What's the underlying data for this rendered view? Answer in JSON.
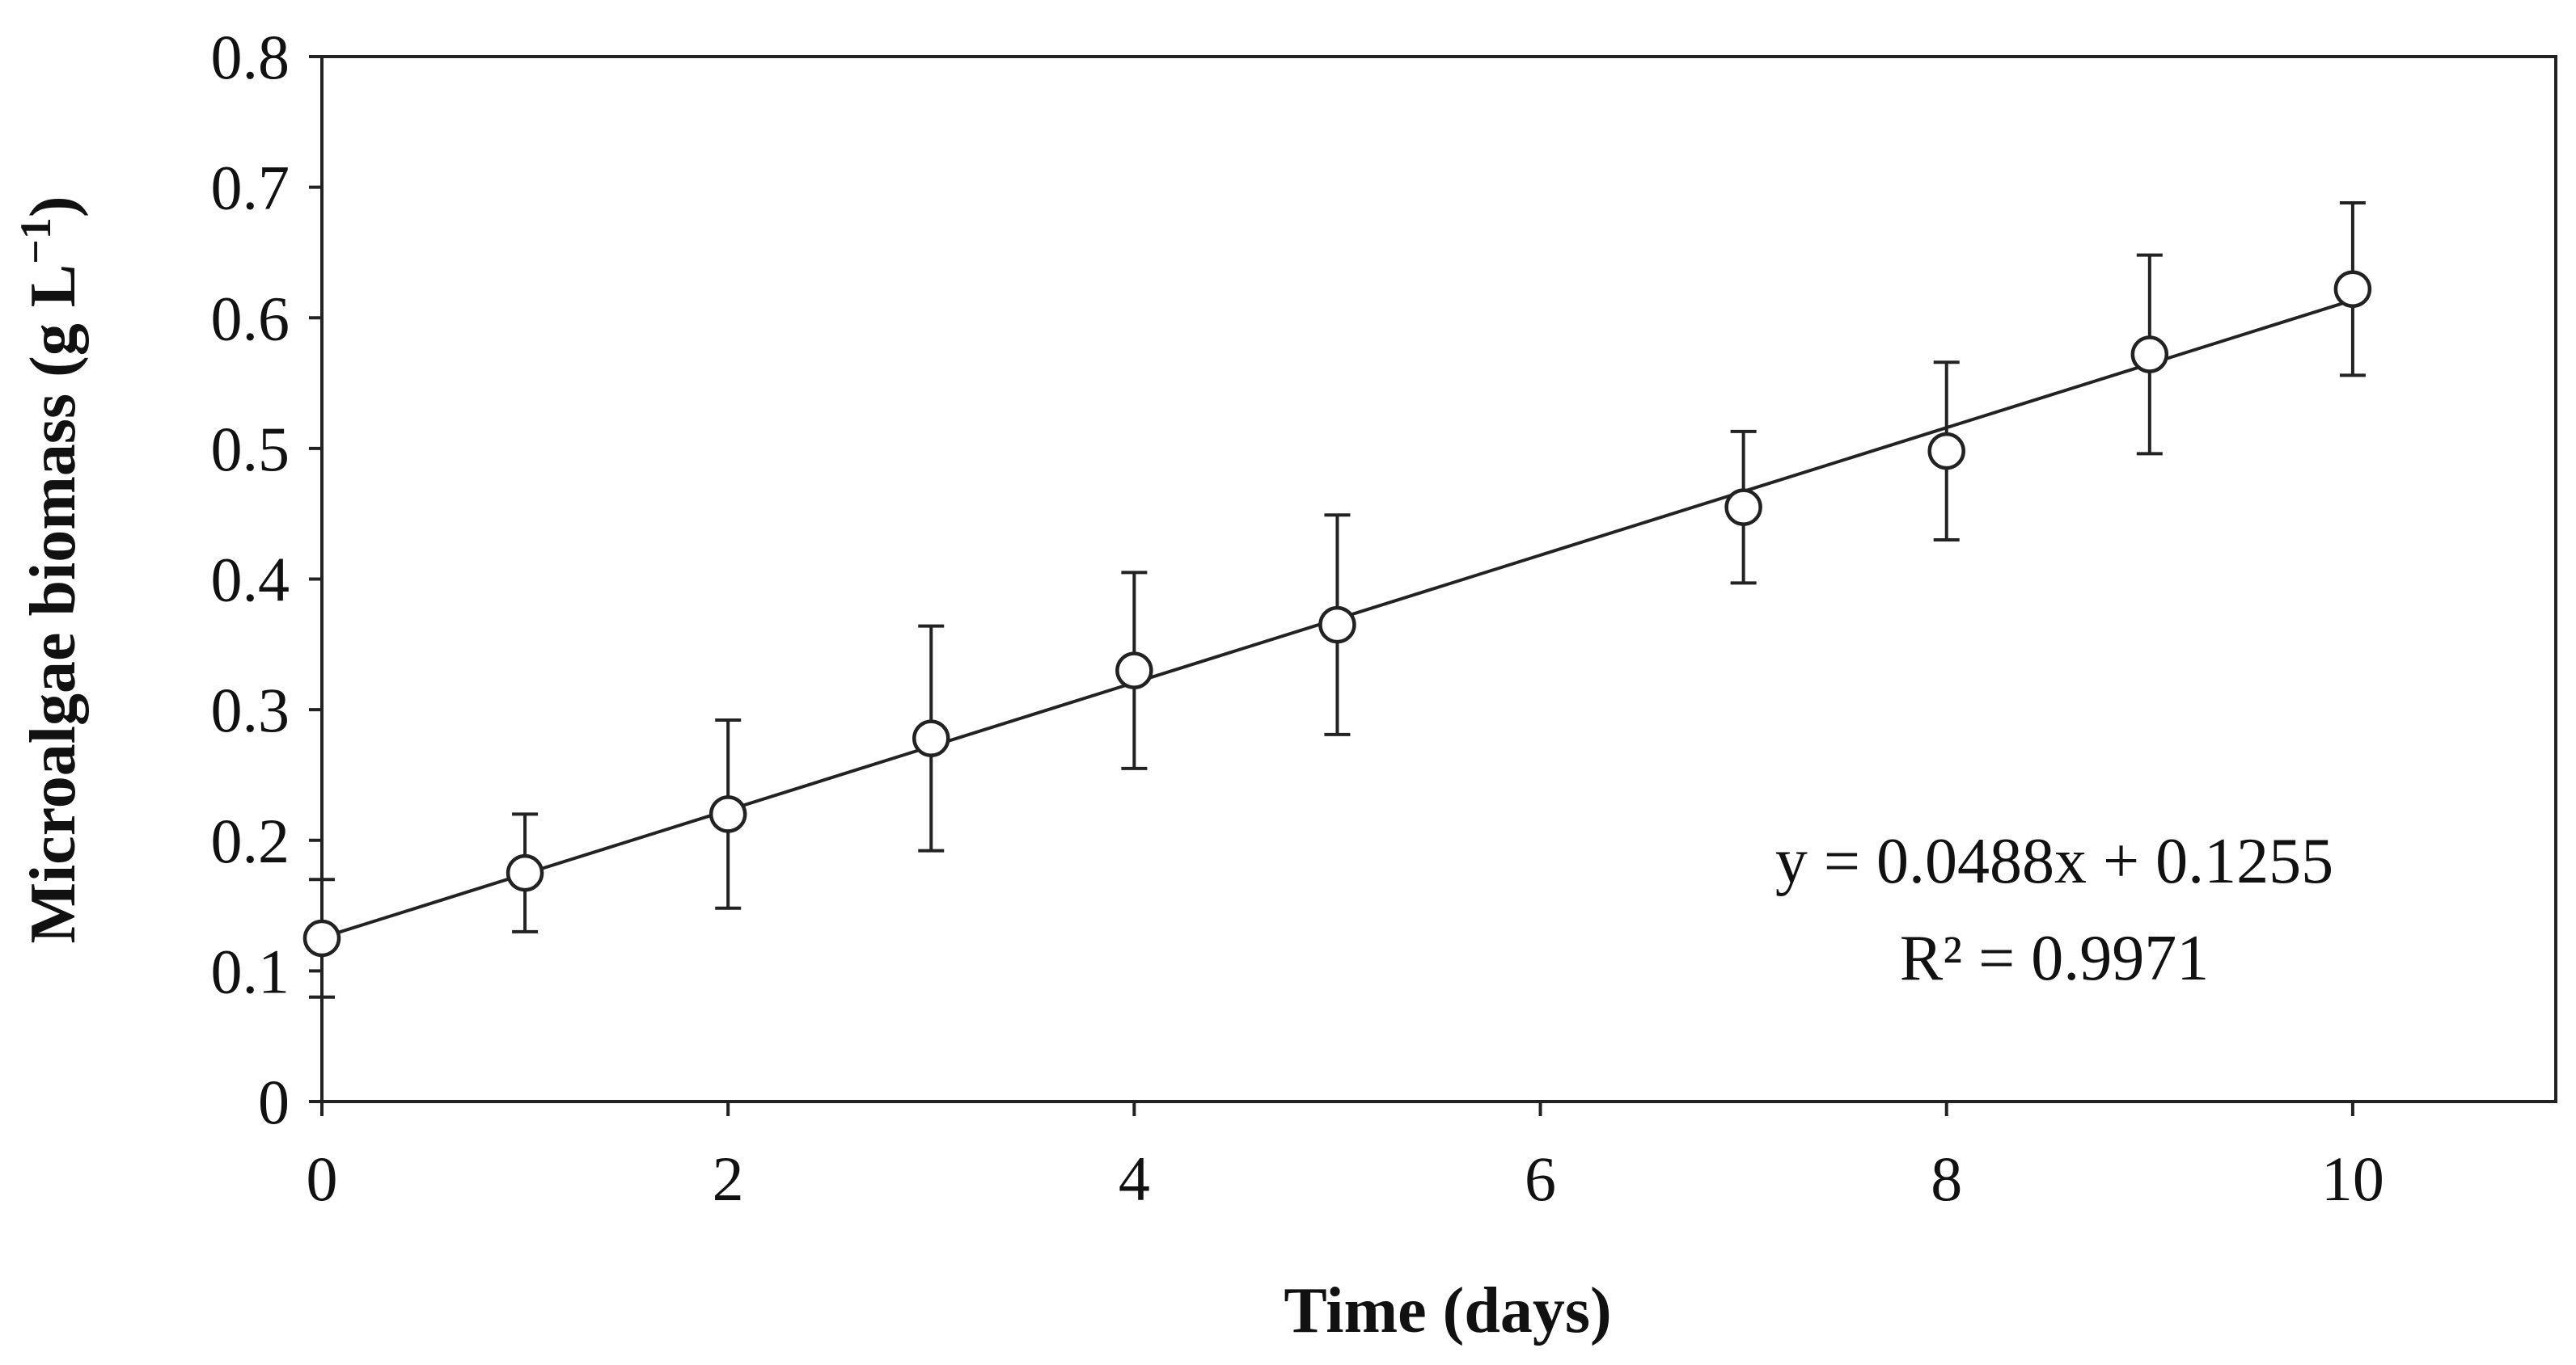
{
  "chart_data": {
    "type": "scatter",
    "title": "",
    "xlabel": "Time (days)",
    "ylabel_main": "Microalgae biomass (g L",
    "ylabel_sup": "−1",
    "ylabel_close": ")",
    "xlim": [
      0,
      11
    ],
    "ylim": [
      0,
      0.8
    ],
    "xticks": [
      0,
      2,
      4,
      6,
      8,
      10
    ],
    "xtick_labels": [
      "0",
      "2",
      "4",
      "6",
      "8",
      "10"
    ],
    "yticks": [
      0,
      0.1,
      0.2,
      0.3,
      0.4,
      0.5,
      0.6,
      0.7,
      0.8
    ],
    "ytick_labels": [
      "0",
      "0.1",
      "0.2",
      "0.3",
      "0.4",
      "0.5",
      "0.6",
      "0.7",
      "0.8"
    ],
    "grid": false,
    "series": [
      {
        "name": "Microalgae biomass",
        "marker": "open-circle",
        "x": [
          0,
          1,
          2,
          3,
          4,
          5,
          7,
          8,
          9,
          10
        ],
        "y": [
          0.125,
          0.175,
          0.22,
          0.278,
          0.33,
          0.365,
          0.455,
          0.498,
          0.572,
          0.622
        ],
        "error": [
          0.045,
          0.045,
          0.072,
          0.086,
          0.075,
          0.084,
          0.058,
          0.068,
          0.076,
          0.066
        ]
      }
    ],
    "trendline": {
      "type": "linear",
      "slope": 0.0488,
      "intercept": 0.1255,
      "x_range": [
        0,
        10
      ],
      "equation_text": "y = 0.0488x + 0.1255",
      "r2_text": "R² = 0.9971"
    },
    "colors": {
      "line": "#222222",
      "marker": "#222222",
      "text": "#111111"
    }
  }
}
